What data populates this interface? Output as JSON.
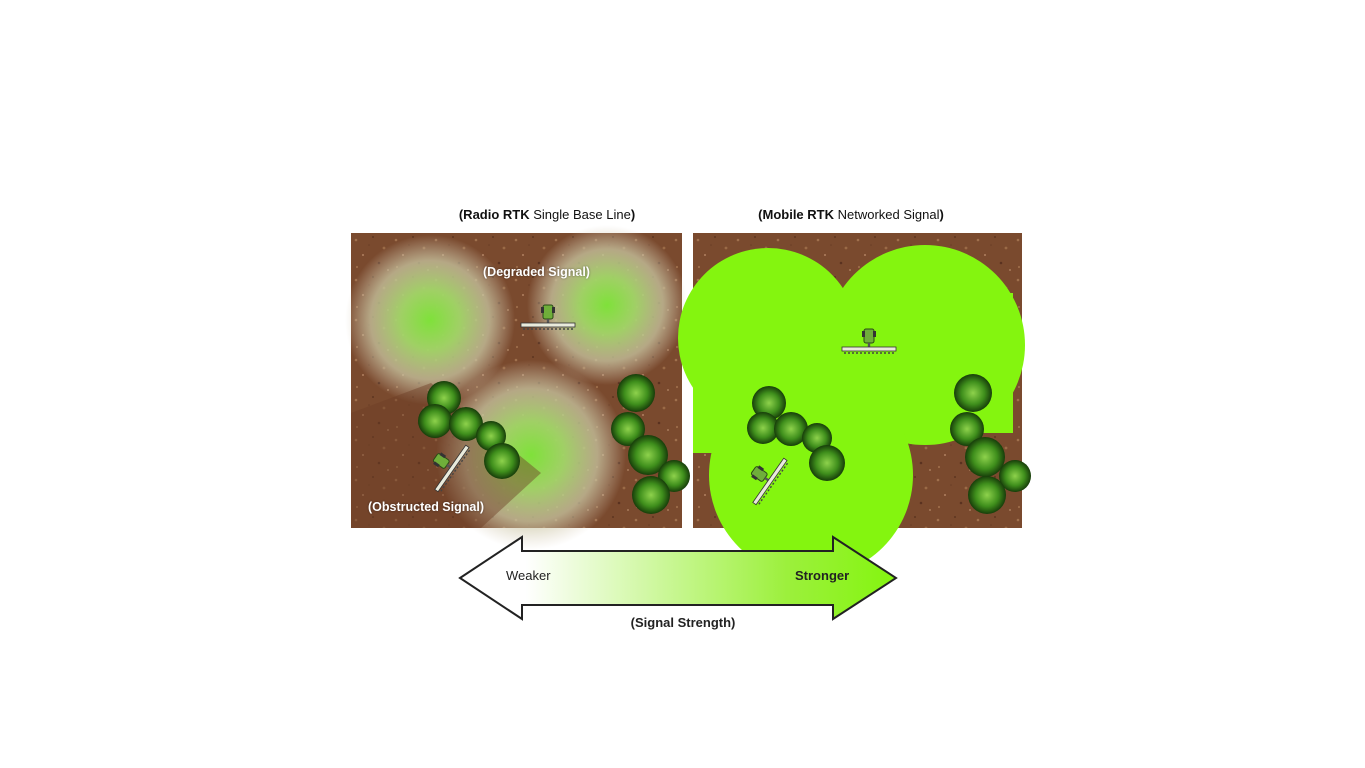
{
  "left_caption": {
    "bold": "Radio RTK",
    "rest": " Single Base Line",
    "open": "(",
    "close": ")"
  },
  "right_caption": {
    "bold": "Mobile RTK",
    "rest": " Networked Signal",
    "open": "(",
    "close": ")"
  },
  "left_panel": {
    "degraded_label": "(Degraded Signal)",
    "obstructed_label": "(Obstructed Signal)"
  },
  "scale": {
    "weaker": "Weaker",
    "stronger": "Stronger",
    "caption": "(Signal Strength)"
  },
  "colors": {
    "soil": "#7a4a2e",
    "signal": "#84f50f",
    "tree": "#3f8f1c",
    "arrow_stroke": "#222222"
  }
}
